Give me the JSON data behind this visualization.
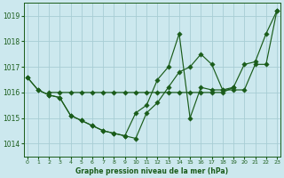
{
  "xlabel": "Graphe pression niveau de la mer (hPa)",
  "bg_color": "#cce8ee",
  "line_color": "#1a5c1a",
  "grid_color": "#a8cdd4",
  "xlim_min": -0.3,
  "xlim_max": 23.3,
  "ylim_min": 1013.5,
  "ylim_max": 1019.5,
  "yticks": [
    1014,
    1015,
    1016,
    1017,
    1018,
    1019
  ],
  "xticks": [
    0,
    1,
    2,
    3,
    4,
    5,
    6,
    7,
    8,
    9,
    10,
    11,
    12,
    13,
    14,
    15,
    16,
    17,
    18,
    19,
    20,
    21,
    22,
    23
  ],
  "series1_x": [
    0,
    1,
    2,
    3,
    4,
    5,
    6,
    7,
    8,
    9,
    10,
    11,
    12,
    13,
    14,
    15,
    16,
    17,
    18,
    19,
    20,
    21,
    22,
    23
  ],
  "series1_y": [
    1016.6,
    1016.1,
    1015.9,
    1015.8,
    1015.1,
    1014.9,
    1014.7,
    1014.5,
    1014.4,
    1014.3,
    1014.2,
    1015.2,
    1015.6,
    1016.2,
    1016.8,
    1017.0,
    1017.5,
    1017.1,
    1016.1,
    1016.2,
    1017.1,
    1017.2,
    1018.3,
    1019.2
  ],
  "series2_x": [
    0,
    1,
    2,
    3,
    4,
    5,
    6,
    7,
    8,
    9,
    10,
    11,
    12,
    13,
    14,
    15,
    16,
    17,
    18,
    19,
    20,
    21,
    22,
    23
  ],
  "series2_y": [
    1016.6,
    1016.1,
    1015.9,
    1015.8,
    1015.1,
    1014.9,
    1014.7,
    1014.5,
    1014.4,
    1014.3,
    1015.2,
    1015.5,
    1016.5,
    1017.0,
    1018.3,
    1015.0,
    1016.2,
    1016.1,
    1016.1,
    1016.1,
    1016.1,
    1017.1,
    1017.1,
    1019.2
  ],
  "series3_x": [
    2,
    3,
    4,
    5,
    6,
    7,
    8,
    9,
    10,
    11,
    12,
    13,
    14,
    15,
    16,
    17,
    18,
    19
  ],
  "series3_y": [
    1016.0,
    1016.0,
    1016.0,
    1016.0,
    1016.0,
    1016.0,
    1016.0,
    1016.0,
    1016.0,
    1016.0,
    1016.0,
    1016.0,
    1016.0,
    1016.0,
    1016.0,
    1016.0,
    1016.0,
    1016.2
  ]
}
